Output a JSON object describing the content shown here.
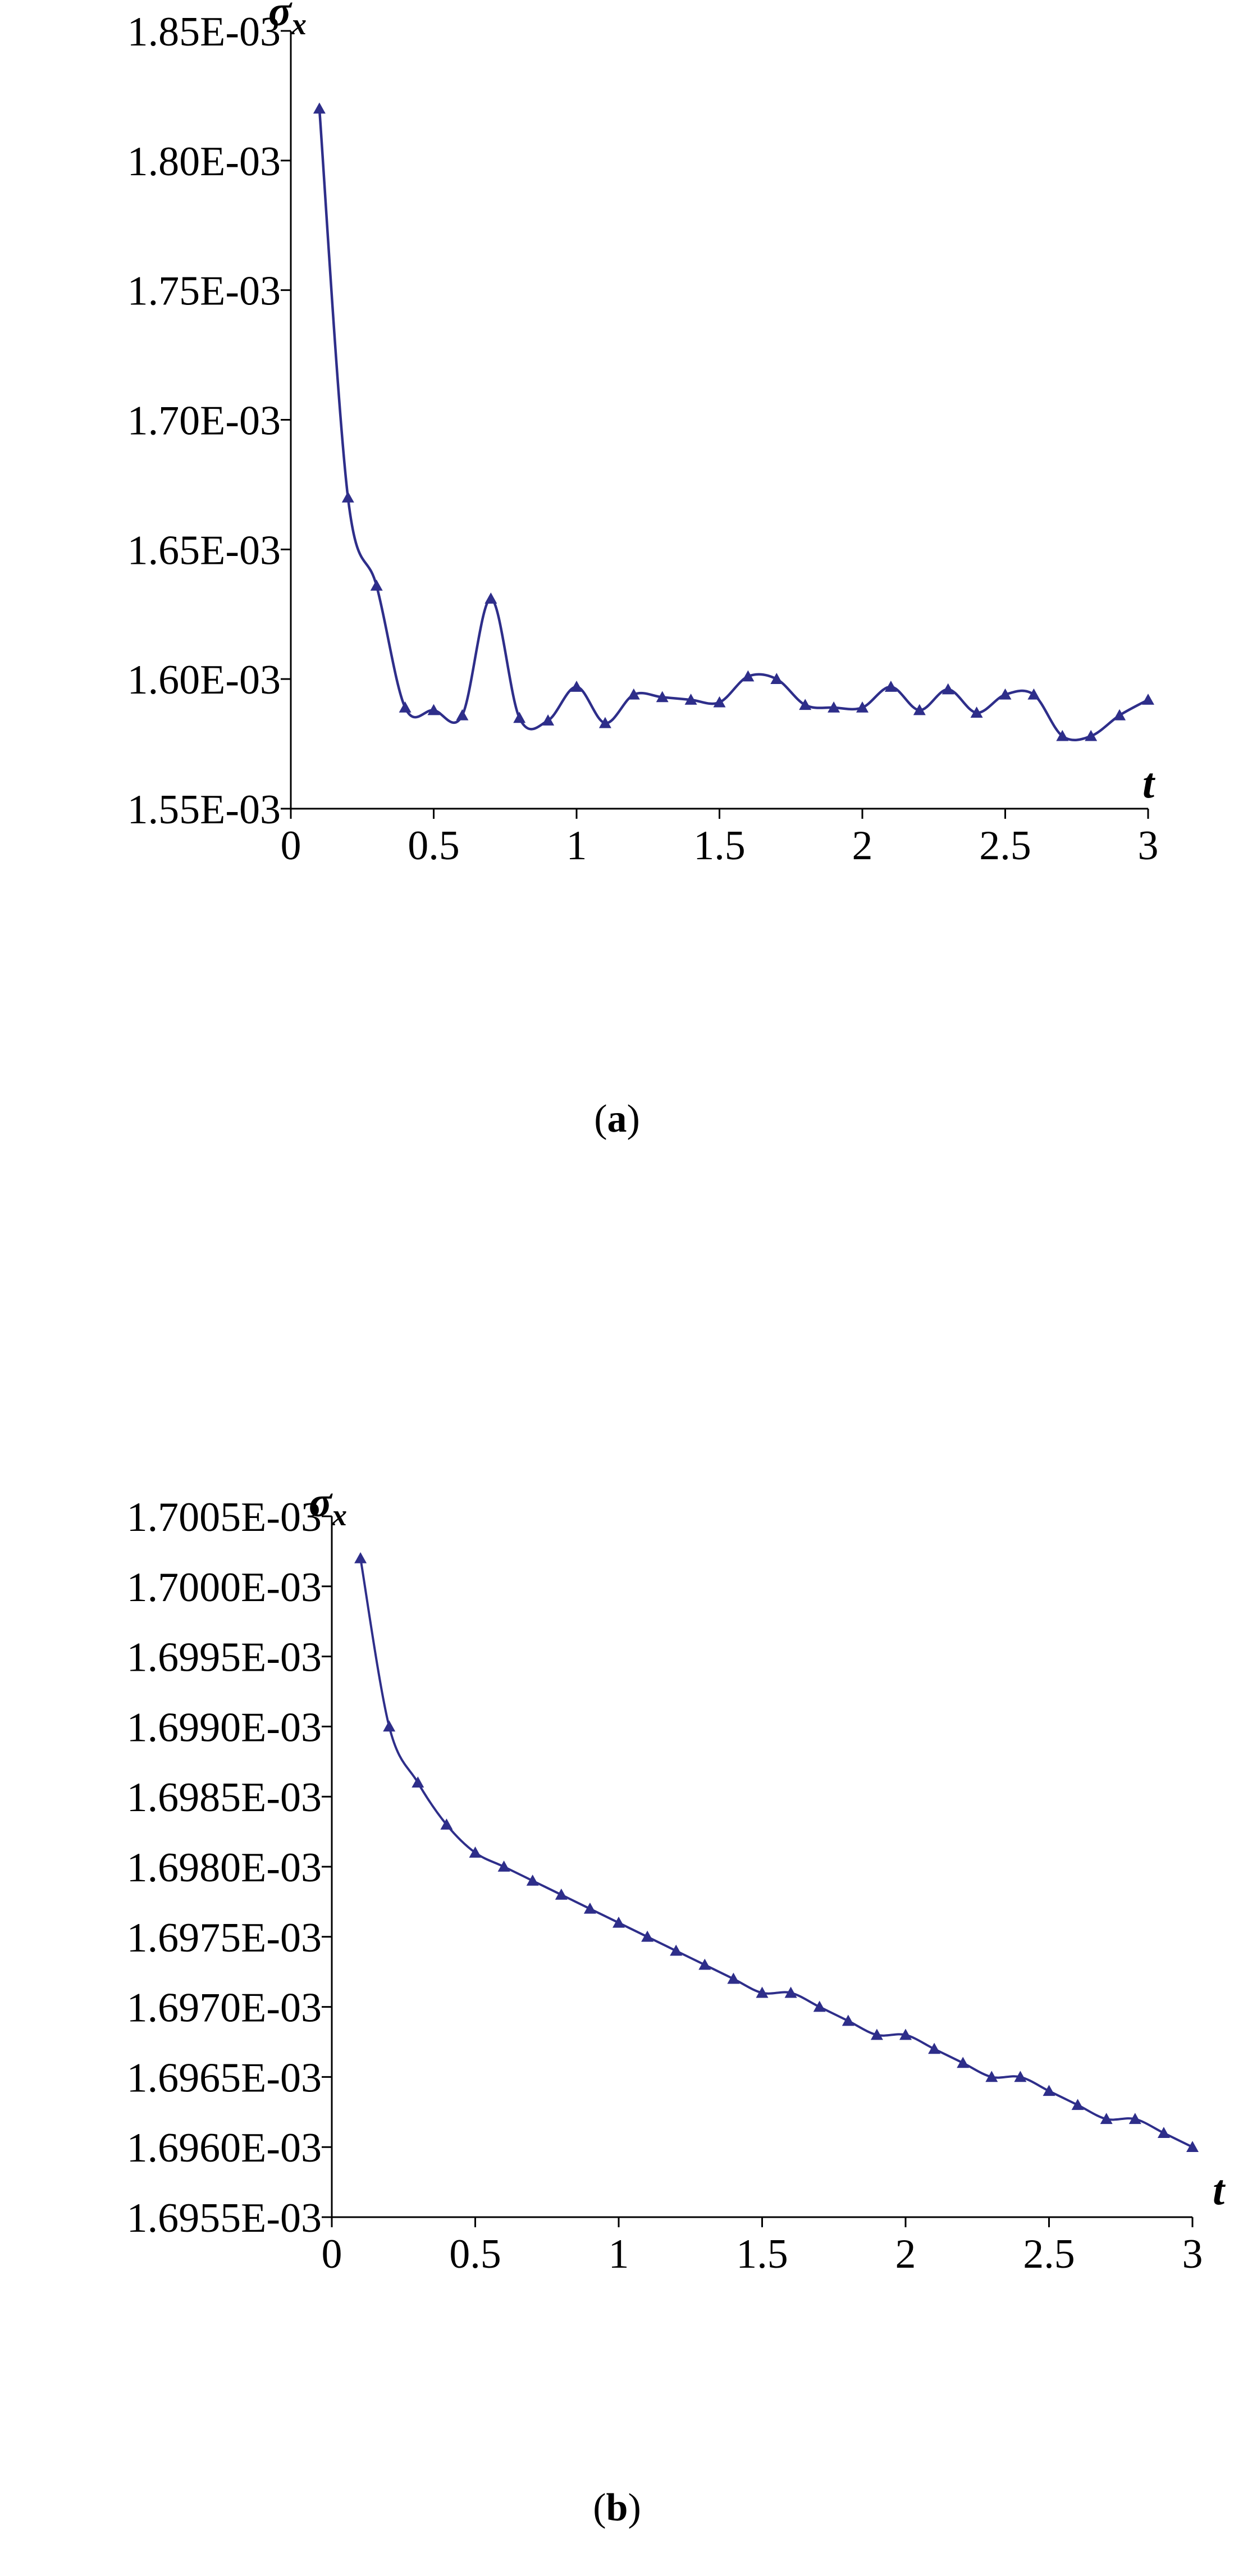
{
  "chart_data": [
    {
      "type": "line",
      "caption": "a",
      "ylabel": "σ",
      "ylabel_sub": "x",
      "xlabel": "t",
      "xlim": [
        0,
        3
      ],
      "ylim": [
        0.00155,
        0.00185
      ],
      "x_ticks": [
        "0",
        "0.5",
        "1",
        "1.5",
        "2",
        "2.5",
        "3"
      ],
      "x_tick_values": [
        0,
        0.5,
        1,
        1.5,
        2,
        2.5,
        3
      ],
      "y_ticks": [
        "1.85E-03",
        "1.80E-03",
        "1.75E-03",
        "1.70E-03",
        "1.65E-03",
        "1.60E-03",
        "1.55E-03"
      ],
      "y_tick_values": [
        0.00185,
        0.0018,
        0.00175,
        0.0017,
        0.00165,
        0.0016,
        0.00155
      ],
      "grid": false,
      "line_color": "#2e2e8a",
      "marker": "triangle",
      "x": [
        0.1,
        0.2,
        0.3,
        0.4,
        0.5,
        0.6,
        0.7,
        0.8,
        0.9,
        1.0,
        1.1,
        1.2,
        1.3,
        1.4,
        1.5,
        1.6,
        1.7,
        1.8,
        1.9,
        2.0,
        2.1,
        2.2,
        2.3,
        2.4,
        2.5,
        2.6,
        2.7,
        2.8,
        2.9,
        3.0
      ],
      "y": [
        0.00182,
        0.00167,
        0.001636,
        0.001589,
        0.001588,
        0.001586,
        0.001631,
        0.001585,
        0.001584,
        0.001597,
        0.001583,
        0.001594,
        0.001593,
        0.001592,
        0.001591,
        0.001601,
        0.0016,
        0.00159,
        0.001589,
        0.001589,
        0.001597,
        0.001588,
        0.001596,
        0.001587,
        0.001594,
        0.001594,
        0.001578,
        0.001578,
        0.001586,
        0.001592
      ]
    },
    {
      "type": "line",
      "caption": "b",
      "ylabel": "σ",
      "ylabel_sub": "x",
      "xlabel": "t",
      "xlim": [
        0,
        3
      ],
      "ylim": [
        0.0016955,
        0.0017005
      ],
      "x_ticks": [
        "0",
        "0.5",
        "1",
        "1.5",
        "2",
        "2.5",
        "3"
      ],
      "x_tick_values": [
        0,
        0.5,
        1,
        1.5,
        2,
        2.5,
        3
      ],
      "y_ticks": [
        "1.7005E-03",
        "1.7000E-03",
        "1.6995E-03",
        "1.6990E-03",
        "1.6985E-03",
        "1.6980E-03",
        "1.6975E-03",
        "1.6970E-03",
        "1.6965E-03",
        "1.6960E-03",
        "1.6955E-03"
      ],
      "y_tick_values": [
        0.0017005,
        0.0017,
        0.0016995,
        0.001699,
        0.0016985,
        0.001698,
        0.0016975,
        0.001697,
        0.0016965,
        0.001696,
        0.0016955
      ],
      "grid": false,
      "line_color": "#2e2e8a",
      "marker": "triangle",
      "x": [
        0.1,
        0.2,
        0.3,
        0.4,
        0.5,
        0.6,
        0.7,
        0.8,
        0.9,
        1.0,
        1.1,
        1.2,
        1.3,
        1.4,
        1.5,
        1.6,
        1.7,
        1.8,
        1.9,
        2.0,
        2.1,
        2.2,
        2.3,
        2.4,
        2.5,
        2.6,
        2.7,
        2.8,
        2.9,
        3.0
      ],
      "y": [
        0.0017002,
        0.001699,
        0.0016986,
        0.0016983,
        0.0016981,
        0.001698,
        0.0016979,
        0.0016978,
        0.0016977,
        0.0016976,
        0.0016975,
        0.0016974,
        0.0016973,
        0.0016972,
        0.0016971,
        0.0016971,
        0.001697,
        0.0016969,
        0.0016968,
        0.0016968,
        0.0016967,
        0.0016966,
        0.0016965,
        0.0016965,
        0.0016964,
        0.0016963,
        0.0016962,
        0.0016962,
        0.0016961,
        0.001696
      ]
    }
  ]
}
